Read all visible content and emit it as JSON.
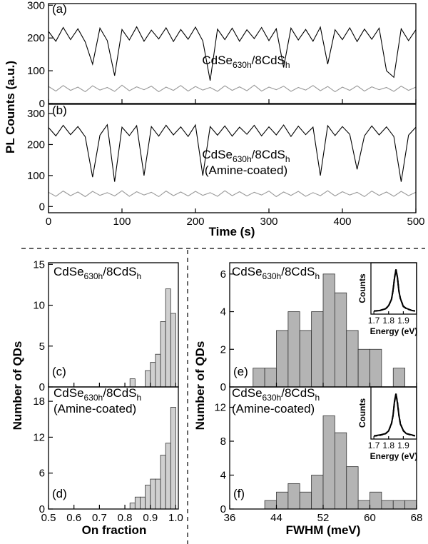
{
  "chart_data": [
    {
      "type": "line",
      "panel_label": "(a)",
      "ylabel": "PL Counts (a.u.)",
      "annotation": [
        "CdSe",
        "630h",
        "/8CdS",
        "h"
      ],
      "xlim": [
        0,
        500
      ],
      "ylim": [
        0,
        305
      ],
      "yticks": [
        0,
        100,
        200,
        300
      ],
      "x": [
        0,
        10,
        20,
        30,
        40,
        50,
        60,
        70,
        80,
        90,
        100,
        110,
        120,
        130,
        140,
        150,
        160,
        170,
        180,
        190,
        200,
        210,
        220,
        230,
        240,
        250,
        260,
        270,
        280,
        290,
        300,
        310,
        320,
        330,
        340,
        350,
        360,
        370,
        380,
        390,
        400,
        410,
        420,
        430,
        440,
        450,
        460,
        470,
        480,
        490,
        500
      ],
      "series": [
        {
          "color": "#000000",
          "values": [
            220,
            190,
            232,
            195,
            228,
            188,
            120,
            230,
            192,
            85,
            226,
            194,
            234,
            190,
            224,
            197,
            231,
            189,
            226,
            196,
            233,
            191,
            70,
            227,
            195,
            230,
            190,
            225,
            198,
            232,
            192,
            228,
            110,
            230,
            194,
            226,
            190,
            233,
            120,
            225,
            195,
            231,
            189,
            227,
            196,
            230,
            100,
            80,
            228,
            192,
            225
          ]
        },
        {
          "color": "#999999",
          "values": [
            52,
            38,
            55,
            40,
            50,
            36,
            54,
            41,
            49,
            37,
            56,
            39,
            51,
            42,
            53,
            36,
            50,
            40,
            55,
            38,
            52,
            41,
            49,
            37,
            54,
            40,
            51,
            39,
            56,
            38,
            50,
            42,
            53,
            37,
            49,
            41,
            55,
            39,
            52,
            36,
            50,
            40,
            54,
            38,
            51,
            42,
            49,
            37,
            53,
            40,
            50
          ]
        }
      ]
    },
    {
      "type": "line",
      "panel_label": "(b)",
      "xlabel": "Time (s)",
      "annotation": [
        "CdSe",
        "630h",
        "/8CdS",
        "h"
      ],
      "annotation2": "(Amine-coated)",
      "xlim": [
        0,
        500
      ],
      "ylim": [
        -20,
        330
      ],
      "yticks": [
        0,
        100,
        200,
        300
      ],
      "xticks": [
        0,
        100,
        200,
        300,
        400,
        500
      ],
      "x": [
        0,
        10,
        20,
        30,
        40,
        50,
        60,
        70,
        80,
        90,
        100,
        110,
        120,
        130,
        140,
        150,
        160,
        170,
        180,
        190,
        200,
        210,
        220,
        230,
        240,
        250,
        260,
        270,
        280,
        290,
        300,
        310,
        320,
        330,
        340,
        350,
        360,
        370,
        380,
        390,
        400,
        410,
        420,
        430,
        440,
        450,
        460,
        470,
        480,
        490,
        500
      ],
      "series": [
        {
          "color": "#000000",
          "values": [
            255,
            228,
            262,
            232,
            258,
            225,
            95,
            230,
            264,
            80,
            256,
            229,
            261,
            100,
            258,
            227,
            262,
            231,
            257,
            226,
            263,
            100,
            258,
            230,
            260,
            227,
            256,
            233,
            262,
            228,
            257,
            231,
            263,
            226,
            259,
            232,
            256,
            100,
            261,
            229,
            258,
            233,
            120,
            228,
            260,
            231,
            257,
            226,
            80,
            230,
            256
          ]
        },
        {
          "color": "#999999",
          "values": [
            46,
            33,
            50,
            35,
            47,
            32,
            49,
            36,
            45,
            34,
            51,
            33,
            48,
            37,
            46,
            32,
            50,
            35,
            47,
            34,
            49,
            36,
            45,
            33,
            51,
            35,
            48,
            34,
            46,
            37,
            50,
            32,
            47,
            36,
            49,
            33,
            45,
            35,
            51,
            34,
            48,
            37,
            46,
            32,
            50,
            36,
            47,
            33,
            49,
            35,
            46
          ]
        }
      ]
    },
    {
      "type": "histogram",
      "panel_label": "(c)",
      "ylabel": "Number of QDs",
      "annotation": [
        "CdSe",
        "630h",
        "/8CdS",
        "h"
      ],
      "color": "#d0d0d0",
      "xlim": [
        0.5,
        1.01
      ],
      "ylim": [
        0,
        15.2
      ],
      "yticks": [
        0,
        5,
        10,
        15
      ],
      "bins": [
        0.82,
        0.84,
        0.86,
        0.88,
        0.9,
        0.92,
        0.94,
        0.96,
        0.98,
        1.0
      ],
      "values": [
        1,
        0,
        0,
        2,
        3,
        4,
        8,
        12,
        9
      ]
    },
    {
      "type": "histogram",
      "panel_label": "(d)",
      "xlabel": "On fraction",
      "annotation": [
        "CdSe",
        "630h",
        "/8CdS",
        "h"
      ],
      "annotation2": "(Amine-coated)",
      "color": "#d0d0d0",
      "xlim": [
        0.5,
        1.01
      ],
      "ylim": [
        0,
        20.4
      ],
      "yticks": [
        0,
        6,
        12,
        18
      ],
      "xticks": [
        0.5,
        0.6,
        0.7,
        0.8,
        0.9,
        {
          "value": 1,
          "label": "1.0"
        }
      ],
      "bins": [
        0.82,
        0.84,
        0.86,
        0.88,
        0.9,
        0.92,
        0.94,
        0.96,
        0.98,
        1.0
      ],
      "values": [
        1,
        2,
        2,
        4,
        5,
        5,
        9,
        11,
        17
      ]
    },
    {
      "type": "histogram",
      "panel_label": "(e)",
      "ylabel": "Number of QDs",
      "annotation": [
        "CdSe",
        "630h",
        "/8CdS",
        "h"
      ],
      "color": "#b4b4b4",
      "xlim": [
        36,
        68
      ],
      "ylim": [
        0,
        6.6
      ],
      "yticks": [
        0,
        2,
        4,
        6
      ],
      "bins": [
        40,
        42,
        44,
        46,
        48,
        50,
        52,
        54,
        56,
        58,
        60,
        62,
        64,
        66
      ],
      "values": [
        1,
        1,
        3,
        4,
        3,
        4,
        6,
        5,
        3,
        2,
        2,
        0,
        1
      ]
    },
    {
      "type": "histogram",
      "panel_label": "(f)",
      "xlabel": "FWHM (meV)",
      "annotation": [
        "CdSe",
        "630h",
        "/8CdS",
        "h"
      ],
      "annotation2": "(Amine-coated)",
      "color": "#b4b4b4",
      "xlim": [
        36,
        68
      ],
      "ylim": [
        0,
        14.4
      ],
      "yticks": [
        0,
        4,
        8,
        12
      ],
      "xticks": [
        36,
        44,
        52,
        60,
        68
      ],
      "bins": [
        42,
        44,
        46,
        48,
        50,
        52,
        54,
        56,
        58,
        60,
        62,
        64,
        66,
        68
      ],
      "values": [
        1,
        2,
        3,
        2,
        4,
        11,
        9,
        5,
        1,
        2,
        1,
        1,
        1
      ]
    },
    {
      "type": "line",
      "xlabel": "Energy (eV)",
      "ylabel": "Counts",
      "xlim": [
        1.68,
        1.99
      ],
      "ylim": [
        0,
        1.15
      ],
      "xticks": [
        1.7,
        1.8,
        1.9
      ],
      "x": [
        1.7,
        1.74,
        1.78,
        1.8,
        1.82,
        1.83,
        1.84,
        1.85,
        1.86,
        1.87,
        1.88,
        1.9,
        1.92,
        1.96,
        1.98
      ],
      "series": [
        {
          "color": "#000000",
          "values": [
            0.07,
            0.08,
            0.12,
            0.19,
            0.33,
            0.54,
            0.8,
            1.0,
            0.82,
            0.51,
            0.35,
            0.17,
            0.13,
            0.08,
            0.07
          ]
        },
        {
          "color": "#000000",
          "dash": true,
          "values": [
            0.067,
            0.08,
            0.122,
            0.181,
            0.342,
            0.525,
            0.81,
            1.0,
            0.81,
            0.525,
            0.342,
            0.181,
            0.122,
            0.08,
            0.072
          ]
        }
      ]
    },
    {
      "type": "line",
      "xlabel": "Energy (eV)",
      "ylabel": "Counts",
      "xlim": [
        1.68,
        1.99
      ],
      "ylim": [
        0,
        1.15
      ],
      "xticks": [
        1.7,
        1.8,
        1.9
      ],
      "x": [
        1.7,
        1.74,
        1.78,
        1.8,
        1.82,
        1.83,
        1.84,
        1.85,
        1.86,
        1.87,
        1.88,
        1.9,
        1.92,
        1.96,
        1.98
      ],
      "series": [
        {
          "color": "#000000",
          "values": [
            0.07,
            0.09,
            0.12,
            0.18,
            0.35,
            0.52,
            0.83,
            1.0,
            0.79,
            0.53,
            0.33,
            0.19,
            0.12,
            0.09,
            0.07
          ]
        },
        {
          "color": "#000000",
          "dash": true,
          "values": [
            0.067,
            0.08,
            0.122,
            0.181,
            0.342,
            0.525,
            0.81,
            1.0,
            0.81,
            0.525,
            0.342,
            0.181,
            0.122,
            0.08,
            0.072
          ]
        }
      ]
    }
  ]
}
